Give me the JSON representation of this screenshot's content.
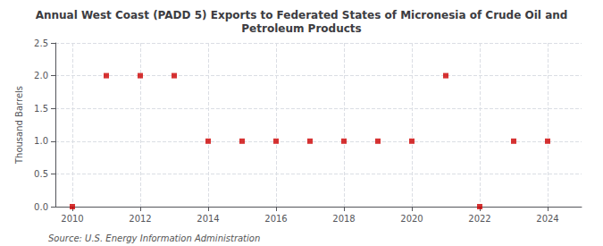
{
  "chart_data": {
    "type": "scatter",
    "title": "Annual West Coast (PADD 5) Exports to Federated States of Micronesia of Crude Oil and\nPetroleum Products",
    "ylabel": "Thousand Barrels",
    "annotation": "Source: U.S. Energy Information Administration",
    "x": [
      2010,
      2011,
      2012,
      2013,
      2014,
      2015,
      2016,
      2017,
      2018,
      2019,
      2020,
      2021,
      2022,
      2023,
      2024
    ],
    "values": [
      0,
      2,
      2,
      2,
      1,
      1,
      1,
      1,
      1,
      1,
      1,
      2,
      0,
      1,
      1
    ],
    "color": "#cc0000",
    "marker": "square",
    "xlim": [
      2009.5,
      2025
    ],
    "ylim": [
      0,
      2.5
    ],
    "xticks": [
      2010,
      2012,
      2014,
      2016,
      2018,
      2020,
      2022,
      2024
    ],
    "yticks": [
      {
        "value": 0,
        "label": "0.0"
      },
      0.5,
      {
        "value": 1,
        "label": "1.0"
      },
      1.5,
      {
        "value": 2,
        "label": "2.0"
      },
      2.5
    ],
    "grid": true
  }
}
